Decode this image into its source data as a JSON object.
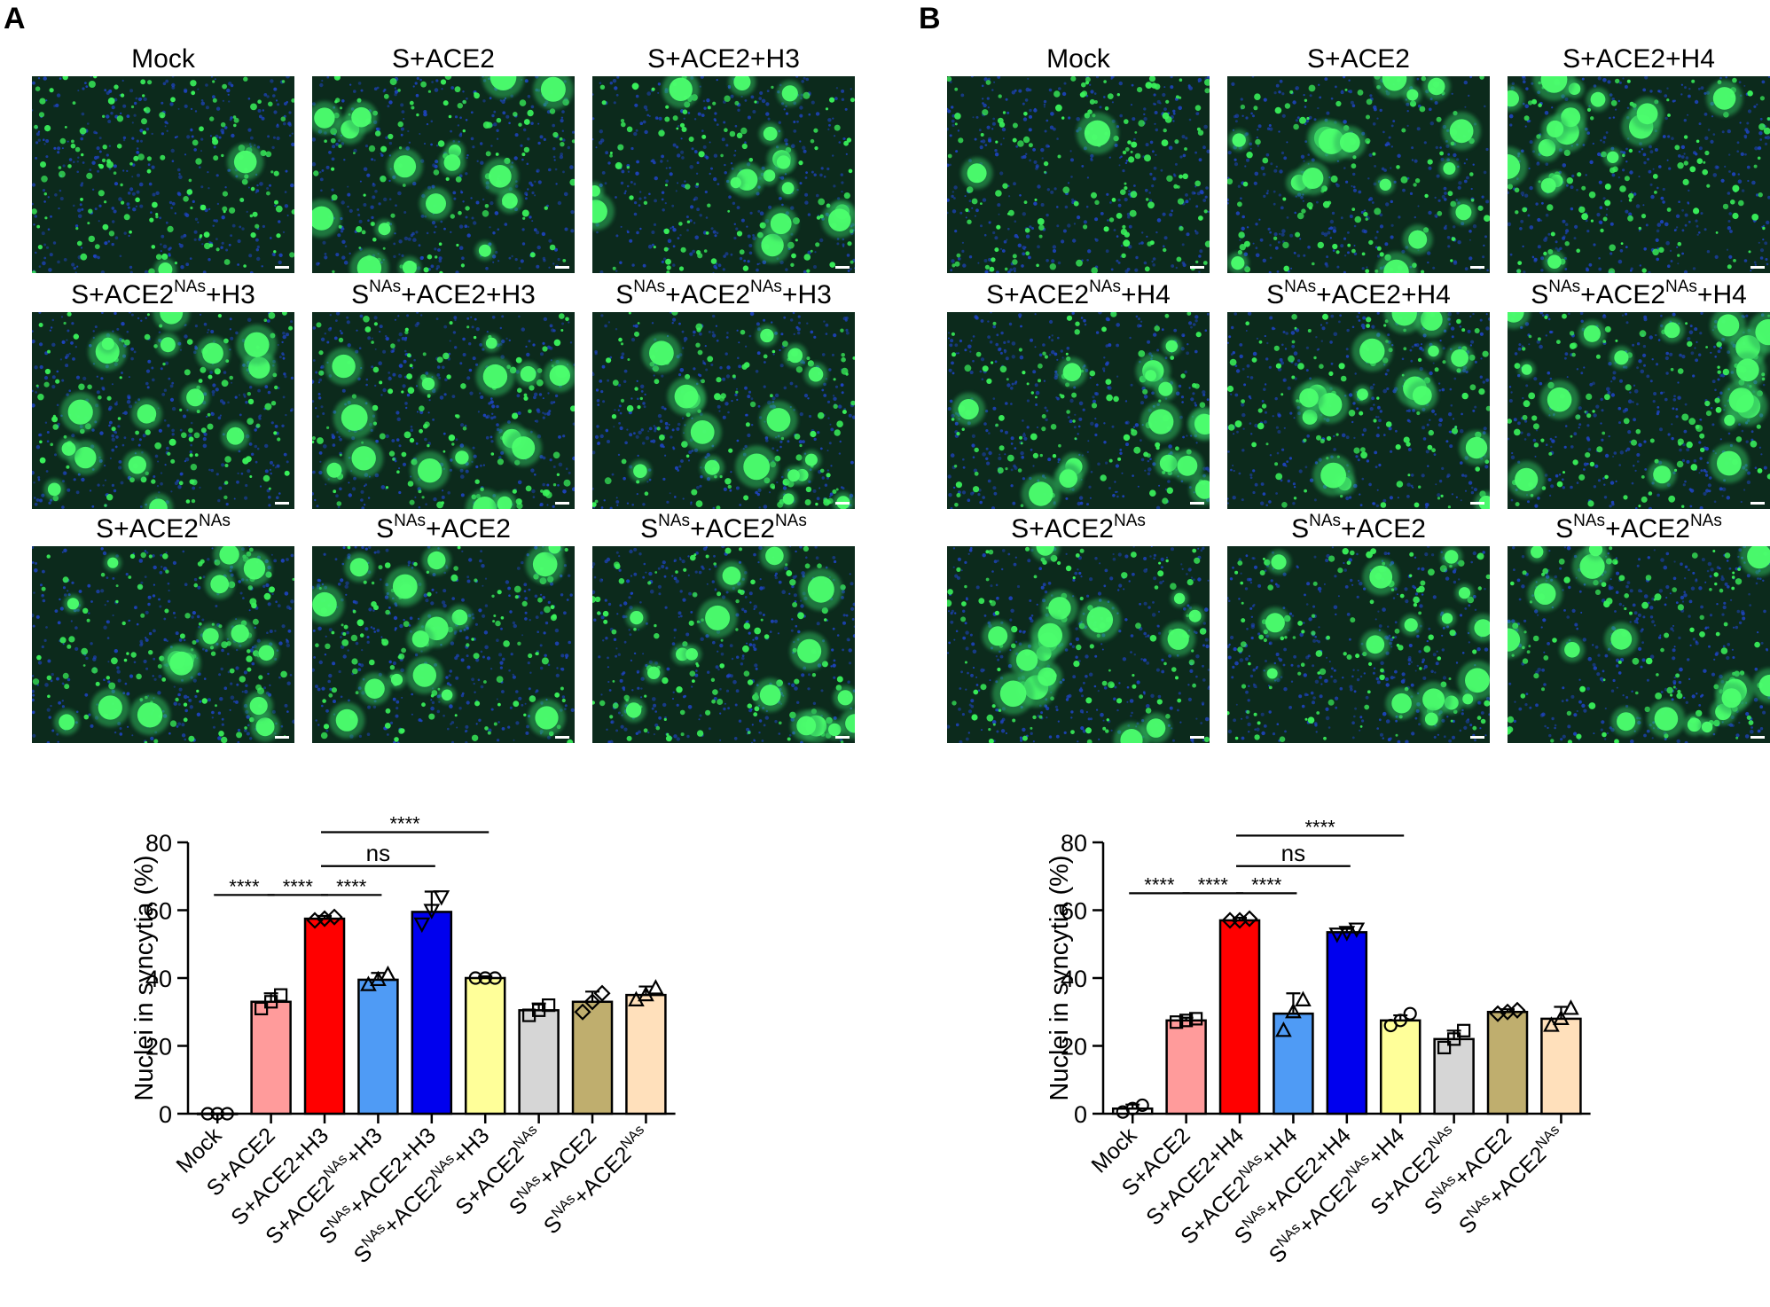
{
  "panels": [
    {
      "letter": "A",
      "images": [
        {
          "label": "Mock",
          "sup": "",
          "label_after": ""
        },
        {
          "label": "S+ACE2",
          "sup": "",
          "label_after": ""
        },
        {
          "label": "S+ACE2+H3",
          "sup": "",
          "label_after": ""
        },
        {
          "label": "S+ACE2",
          "sup": "NAs",
          "label_after": "+H3"
        },
        {
          "label": "S",
          "sup": "NAs",
          "label_after": "+ACE2+H3"
        },
        {
          "label": "S",
          "sup": "NAs",
          "label_after": "+ACE2",
          "sup2": "NAs",
          "label_after2": "+H3"
        },
        {
          "label": "S+ACE2",
          "sup": "NAs",
          "label_after": ""
        },
        {
          "label": "S",
          "sup": "NAs",
          "label_after": "+ACE2"
        },
        {
          "label": "S",
          "sup": "NAs",
          "label_after": "+ACE2",
          "sup2": "NAs",
          "label_after2": ""
        }
      ]
    },
    {
      "letter": "B",
      "images": [
        {
          "label": "Mock",
          "sup": "",
          "label_after": ""
        },
        {
          "label": "S+ACE2",
          "sup": "",
          "label_after": ""
        },
        {
          "label": "S+ACE2+H4",
          "sup": "",
          "label_after": ""
        },
        {
          "label": "S+ACE2",
          "sup": "NAs",
          "label_after": "+H4"
        },
        {
          "label": "S",
          "sup": "NAs",
          "label_after": "+ACE2+H4"
        },
        {
          "label": "S",
          "sup": "NAs",
          "label_after": "+ACE2",
          "sup2": "NAs",
          "label_after2": "+H4"
        },
        {
          "label": "S+ACE2",
          "sup": "NAs",
          "label_after": ""
        },
        {
          "label": "S",
          "sup": "NAs",
          "label_after": "+ACE2"
        },
        {
          "label": "S",
          "sup": "NAs",
          "label_after": "+ACE2",
          "sup2": "NAs",
          "label_after2": ""
        }
      ]
    }
  ],
  "chart_data": [
    {
      "type": "bar",
      "panel": "A",
      "ylabel": "Nuclei in syncytia (%)",
      "ylim": [
        0,
        80
      ],
      "yticks": [
        0,
        20,
        40,
        60,
        80
      ],
      "categories": [
        {
          "main": "Mock",
          "sup": "",
          "after": "",
          "sup2": "",
          "after2": ""
        },
        {
          "main": "S+ACE2",
          "sup": "",
          "after": "",
          "sup2": "",
          "after2": ""
        },
        {
          "main": "S+ACE2+H3",
          "sup": "",
          "after": "",
          "sup2": "",
          "after2": ""
        },
        {
          "main": "S+ACE2",
          "sup": "NAs",
          "after": "+H3",
          "sup2": "",
          "after2": ""
        },
        {
          "main": "S",
          "sup": "NAs",
          "after": "+ACE2+H3",
          "sup2": "",
          "after2": ""
        },
        {
          "main": "S",
          "sup": "NAs",
          "after": "+ACE2",
          "sup2": "NAs",
          "after2": "+H3"
        },
        {
          "main": "S+ACE2",
          "sup": "NAs",
          "after": "",
          "sup2": "",
          "after2": ""
        },
        {
          "main": "S",
          "sup": "NAs",
          "after": "+ACE2",
          "sup2": "",
          "after2": ""
        },
        {
          "main": "S",
          "sup": "NAs",
          "after": "+ACE2",
          "sup2": "NAs",
          "after2": ""
        }
      ],
      "values": [
        0,
        33,
        57.5,
        39.5,
        59.5,
        40,
        30.5,
        33,
        35
      ],
      "errors": [
        0,
        2.5,
        0.8,
        2,
        6,
        0.5,
        2,
        3,
        2.5
      ],
      "points": [
        [
          0,
          0,
          0
        ],
        [
          31,
          33,
          35
        ],
        [
          57,
          57.5,
          58
        ],
        [
          38,
          39.5,
          41
        ],
        [
          56,
          60,
          64
        ],
        [
          40,
          40,
          40
        ],
        [
          29,
          30.5,
          32
        ],
        [
          30,
          33,
          35.5
        ],
        [
          33.5,
          35,
          37
        ]
      ],
      "marker": [
        "circle",
        "square",
        "diamond",
        "triangle-up",
        "triangle-down",
        "circle",
        "square",
        "diamond",
        "triangle-up"
      ],
      "colors": [
        "#ffffff",
        "#ff9b9b",
        "#ff0000",
        "#4f9bf5",
        "#0000ee",
        "#ffff99",
        "#d6d6d6",
        "#bfae6e",
        "#ffe0bb"
      ],
      "significance": [
        {
          "from": 0,
          "to": 1,
          "label": "****",
          "y": 64.5
        },
        {
          "from": 1,
          "to": 2,
          "label": "****",
          "y": 64.5
        },
        {
          "from": 2,
          "to": 3,
          "label": "****",
          "y": 64.5
        },
        {
          "from": 2,
          "to": 4,
          "label": "ns",
          "y": 73
        },
        {
          "from": 2,
          "to": 5,
          "label": "****",
          "y": 83
        }
      ]
    },
    {
      "type": "bar",
      "panel": "B",
      "ylabel": "Nuclei in syncytia (%)",
      "ylim": [
        0,
        80
      ],
      "yticks": [
        0,
        20,
        40,
        60,
        80
      ],
      "categories": [
        {
          "main": "Mock",
          "sup": "",
          "after": "",
          "sup2": "",
          "after2": ""
        },
        {
          "main": "S+ACE2",
          "sup": "",
          "after": "",
          "sup2": "",
          "after2": ""
        },
        {
          "main": "S+ACE2+H4",
          "sup": "",
          "after": "",
          "sup2": "",
          "after2": ""
        },
        {
          "main": "S+ACE2",
          "sup": "NAs",
          "after": "+H4",
          "sup2": "",
          "after2": ""
        },
        {
          "main": "S",
          "sup": "NAs",
          "after": "+ACE2+H4",
          "sup2": "",
          "after2": ""
        },
        {
          "main": "S",
          "sup": "NAs",
          "after": "+ACE2",
          "sup2": "NAs",
          "after2": "+H4"
        },
        {
          "main": "S+ACE2",
          "sup": "NAs",
          "after": "",
          "sup2": "",
          "after2": ""
        },
        {
          "main": "S",
          "sup": "NAs",
          "after": "+ACE2",
          "sup2": "",
          "after2": ""
        },
        {
          "main": "S",
          "sup": "NAs",
          "after": "+ACE2",
          "sup2": "NAs",
          "after2": ""
        }
      ],
      "values": [
        1.5,
        27.5,
        57,
        29.5,
        53.5,
        27.5,
        22,
        30,
        28
      ],
      "errors": [
        1.2,
        0.8,
        0.8,
        6,
        1,
        1.5,
        2.5,
        0.8,
        3.5
      ],
      "points": [
        [
          0.5,
          1.5,
          2.5
        ],
        [
          27,
          27.5,
          28
        ],
        [
          57,
          57,
          57.5
        ],
        [
          24.5,
          30,
          33.5
        ],
        [
          53,
          53.5,
          54.5
        ],
        [
          26,
          27.5,
          29.5
        ],
        [
          19.5,
          22,
          24.5
        ],
        [
          29.5,
          30,
          30.5
        ],
        [
          26,
          28,
          31
        ]
      ],
      "marker": [
        "circle",
        "square",
        "diamond",
        "triangle-up",
        "triangle-down",
        "circle",
        "square",
        "diamond",
        "triangle-up"
      ],
      "colors": [
        "#ffffff",
        "#ff9b9b",
        "#ff0000",
        "#4f9bf5",
        "#0000ee",
        "#ffff99",
        "#d6d6d6",
        "#bfae6e",
        "#ffe0bb"
      ],
      "significance": [
        {
          "from": 0,
          "to": 1,
          "label": "****",
          "y": 65
        },
        {
          "from": 1,
          "to": 2,
          "label": "****",
          "y": 65
        },
        {
          "from": 2,
          "to": 3,
          "label": "****",
          "y": 65
        },
        {
          "from": 2,
          "to": 4,
          "label": "ns",
          "y": 73
        },
        {
          "from": 2,
          "to": 5,
          "label": "****",
          "y": 82
        }
      ]
    }
  ]
}
